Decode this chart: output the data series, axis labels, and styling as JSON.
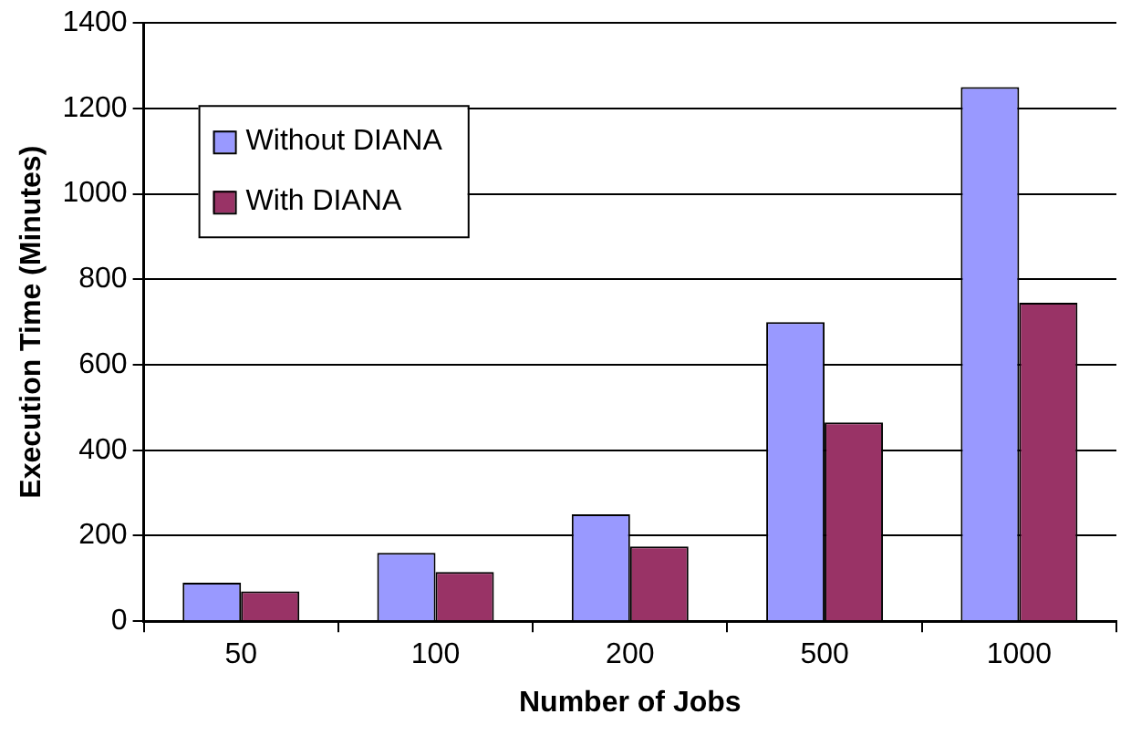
{
  "chart_data": {
    "type": "bar",
    "xlabel": "Number of Jobs",
    "ylabel": "Execution Time (Minutes)",
    "categories": [
      "50",
      "100",
      "200",
      "500",
      "1000"
    ],
    "series": [
      {
        "name": "Without DIANA",
        "color": "#9999ff",
        "values": [
          90,
          160,
          250,
          700,
          1250
        ]
      },
      {
        "name": "With DIANA",
        "color": "#993366",
        "values": [
          70,
          115,
          175,
          465,
          745
        ]
      }
    ],
    "ylim": [
      0,
      1400
    ],
    "yticks": [
      0,
      200,
      400,
      600,
      800,
      1000,
      1200,
      1400
    ],
    "grid": "y",
    "legend": "top left"
  }
}
